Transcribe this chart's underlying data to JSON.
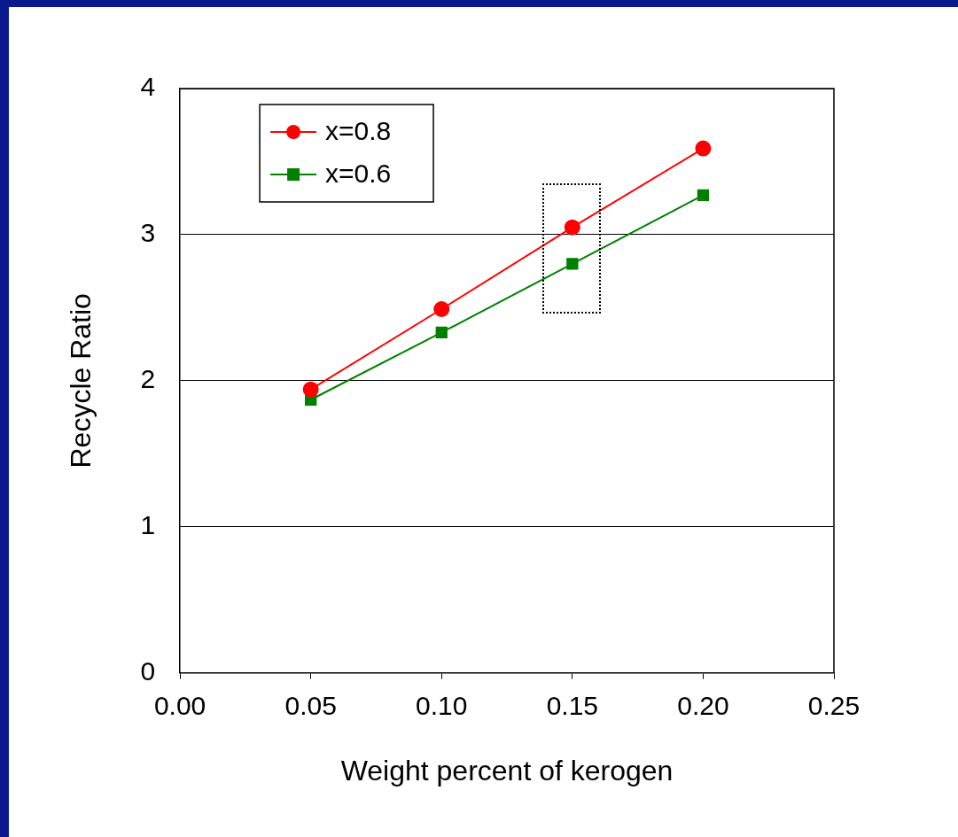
{
  "chart_data": {
    "type": "line",
    "xlabel": "Weight percent of kerogen",
    "ylabel": "Recycle Ratio",
    "x": [
      0.05,
      0.1,
      0.15,
      0.2
    ],
    "series": [
      {
        "name": "x=0.8",
        "color": "#ff0000",
        "marker": "circle",
        "values": [
          1.94,
          2.49,
          3.05,
          3.59
        ]
      },
      {
        "name": "x=0.6",
        "color": "#008000",
        "marker": "square",
        "values": [
          1.87,
          2.33,
          2.8,
          3.27
        ]
      }
    ],
    "xlim": [
      0,
      0.25
    ],
    "xticks": [
      {
        "value": 0,
        "label": "0.00"
      },
      {
        "value": 0.05,
        "label": "0.05"
      },
      {
        "value": 0.1,
        "label": "0.10"
      },
      {
        "value": 0.15,
        "label": "0.15"
      },
      {
        "value": 0.2,
        "label": "0.20"
      },
      {
        "value": 0.25,
        "label": "0.25"
      }
    ],
    "ylim": [
      0,
      4
    ],
    "yticks": [
      0,
      1,
      2,
      3,
      4
    ],
    "grid": "y",
    "legend": "top left",
    "line_style": "solid"
  }
}
